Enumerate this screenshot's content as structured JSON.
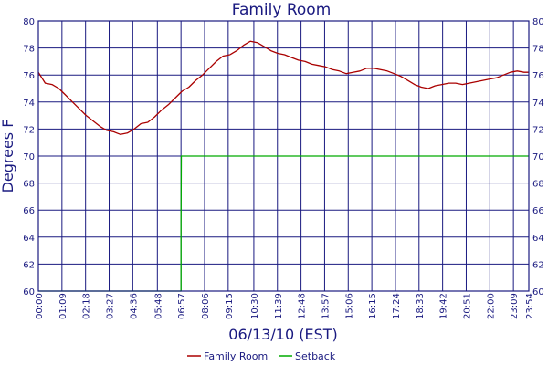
{
  "chart_data": {
    "type": "line",
    "title": "Family Room",
    "xlabel": "06/13/10 (EST)",
    "ylabel": "Degrees F",
    "ylim": [
      60,
      80
    ],
    "yticks": [
      60,
      62,
      64,
      66,
      68,
      70,
      72,
      74,
      76,
      78,
      80
    ],
    "xlim": [
      "00:00",
      "23:54"
    ],
    "xticks": [
      "00:00",
      "01:09",
      "02:18",
      "03:27",
      "04:36",
      "05:48",
      "06:57",
      "08:06",
      "09:15",
      "10:30",
      "11:39",
      "12:48",
      "13:57",
      "15:06",
      "16:15",
      "17:24",
      "18:33",
      "19:42",
      "20:51",
      "22:00",
      "23:09",
      "23:54"
    ],
    "grid": true,
    "legend_position": "bottom",
    "series": [
      {
        "name": "Family Room",
        "color": "#aa0000",
        "x": [
          "00:00",
          "00:20",
          "00:40",
          "01:00",
          "01:20",
          "01:40",
          "02:00",
          "02:20",
          "02:40",
          "03:00",
          "03:20",
          "03:40",
          "04:00",
          "04:20",
          "04:40",
          "05:00",
          "05:20",
          "05:40",
          "06:00",
          "06:20",
          "06:40",
          "07:00",
          "07:20",
          "07:40",
          "08:00",
          "08:20",
          "08:40",
          "09:00",
          "09:20",
          "09:40",
          "10:00",
          "10:20",
          "10:40",
          "11:00",
          "11:20",
          "11:40",
          "12:00",
          "12:20",
          "12:40",
          "13:00",
          "13:20",
          "13:40",
          "14:00",
          "14:20",
          "14:40",
          "15:00",
          "15:20",
          "15:40",
          "16:00",
          "16:20",
          "16:40",
          "17:00",
          "17:20",
          "17:40",
          "18:00",
          "18:20",
          "18:40",
          "19:00",
          "19:20",
          "19:40",
          "20:00",
          "20:20",
          "20:40",
          "21:00",
          "21:20",
          "21:40",
          "22:00",
          "22:20",
          "22:40",
          "23:00",
          "23:20",
          "23:40",
          "23:54"
        ],
        "values": [
          76.2,
          75.4,
          75.3,
          75.0,
          74.5,
          74.0,
          73.5,
          73.0,
          72.6,
          72.2,
          71.9,
          71.8,
          71.6,
          71.7,
          72.0,
          72.4,
          72.5,
          72.9,
          73.4,
          73.8,
          74.3,
          74.8,
          75.1,
          75.6,
          76.0,
          76.5,
          77.0,
          77.4,
          77.5,
          77.8,
          78.2,
          78.5,
          78.4,
          78.1,
          77.8,
          77.6,
          77.5,
          77.3,
          77.1,
          77.0,
          76.8,
          76.7,
          76.6,
          76.4,
          76.3,
          76.1,
          76.2,
          76.3,
          76.5,
          76.5,
          76.4,
          76.3,
          76.1,
          75.9,
          75.6,
          75.3,
          75.1,
          75.0,
          75.2,
          75.3,
          75.4,
          75.4,
          75.3,
          75.4,
          75.5,
          75.6,
          75.7,
          75.8,
          76.0,
          76.2,
          76.3,
          76.2,
          76.2
        ]
      },
      {
        "name": "Setback",
        "color": "#00aa00",
        "x": [
          "00:00",
          "06:57",
          "06:57",
          "06:58",
          "23:54"
        ],
        "values": [
          60,
          60,
          65,
          70,
          70
        ]
      }
    ]
  }
}
